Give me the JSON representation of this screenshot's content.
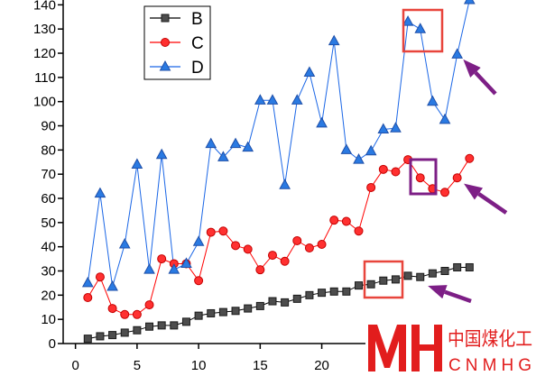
{
  "chart_data": {
    "type": "line",
    "x": [
      1,
      2,
      3,
      4,
      5,
      6,
      7,
      8,
      9,
      10,
      11,
      12,
      13,
      14,
      15,
      16,
      17,
      18,
      19,
      20,
      21,
      22,
      23,
      24,
      25,
      26,
      27,
      28,
      29,
      30,
      31,
      32
    ],
    "xlim": [
      -1,
      37.4
    ],
    "ylim": [
      0,
      142
    ],
    "xticks": [
      0,
      5,
      10,
      15,
      20
    ],
    "yticks": [
      0,
      10,
      20,
      30,
      40,
      50,
      60,
      70,
      80,
      90,
      100,
      110,
      120,
      130,
      140
    ],
    "grid": false,
    "legend": "top-left",
    "series": [
      {
        "name": "B",
        "marker": "square",
        "line_color": "#000000",
        "marker_fill": "#4d4d4d",
        "marker_edge": "#1a1a1a",
        "values": [
          2,
          3,
          3.5,
          4.5,
          5.5,
          7,
          7.5,
          7.5,
          9,
          11.5,
          12.5,
          13,
          13.5,
          14.5,
          15.5,
          17.5,
          17,
          18.5,
          20,
          21,
          21.5,
          21.5,
          24,
          24.5,
          26,
          26.5,
          28,
          27.5,
          29,
          30,
          31.5,
          31.5
        ]
      },
      {
        "name": "C",
        "marker": "circle",
        "line_color": "#ff0000",
        "marker_fill": "#ff3030",
        "marker_edge": "#c40000",
        "values": [
          19,
          27.5,
          14.5,
          12,
          12,
          16,
          35,
          33,
          33,
          26,
          46,
          46.5,
          40.5,
          39,
          30.5,
          36.5,
          34,
          42.5,
          39.5,
          41,
          51,
          50.5,
          46.5,
          64.5,
          72,
          71,
          76,
          68.5,
          64,
          62.5,
          68.5,
          76.5
        ]
      },
      {
        "name": "D",
        "marker": "triangle",
        "line_color": "#1a66e6",
        "marker_fill": "#2a7ae2",
        "marker_edge": "#1f4fa8",
        "values": [
          25,
          62,
          23.5,
          41,
          74,
          30.5,
          78,
          30.5,
          33,
          42,
          82.5,
          77,
          82.5,
          81,
          100.5,
          100.5,
          65.5,
          100.5,
          112,
          91,
          125,
          80,
          76,
          79.5,
          88.5,
          89,
          133,
          130,
          100,
          92.5,
          119.5,
          142
        ]
      }
    ]
  },
  "annotation_colors": {
    "box_red": "#e8453c",
    "arrow_purple": "#7d1f86"
  },
  "watermark": {
    "cn": "中国煤化工",
    "en": "CNMHG",
    "color": "#e21d1d"
  }
}
